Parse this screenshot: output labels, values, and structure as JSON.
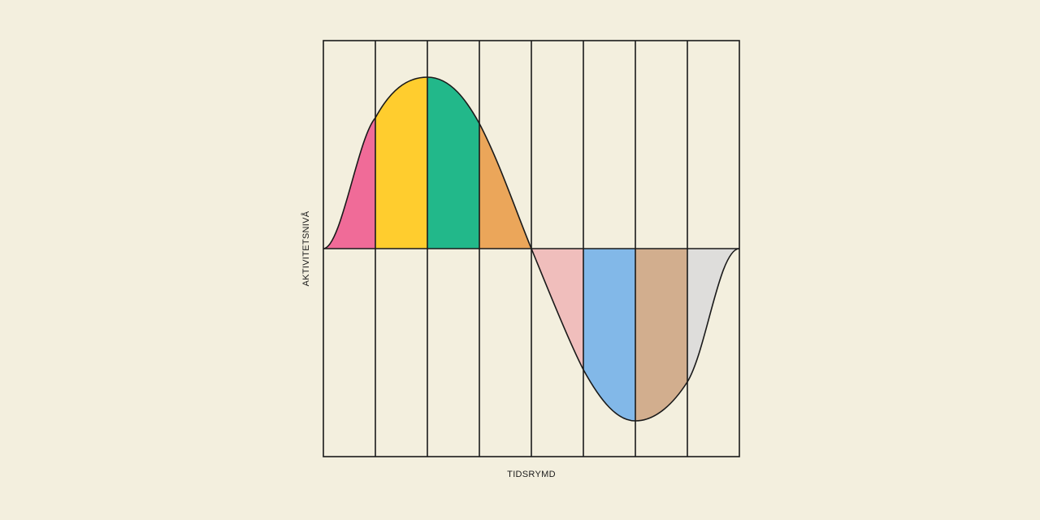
{
  "y_axis_label": "AKTIVITETSNIVÅ",
  "x_axis_label": "TIDSRYMD"
}
